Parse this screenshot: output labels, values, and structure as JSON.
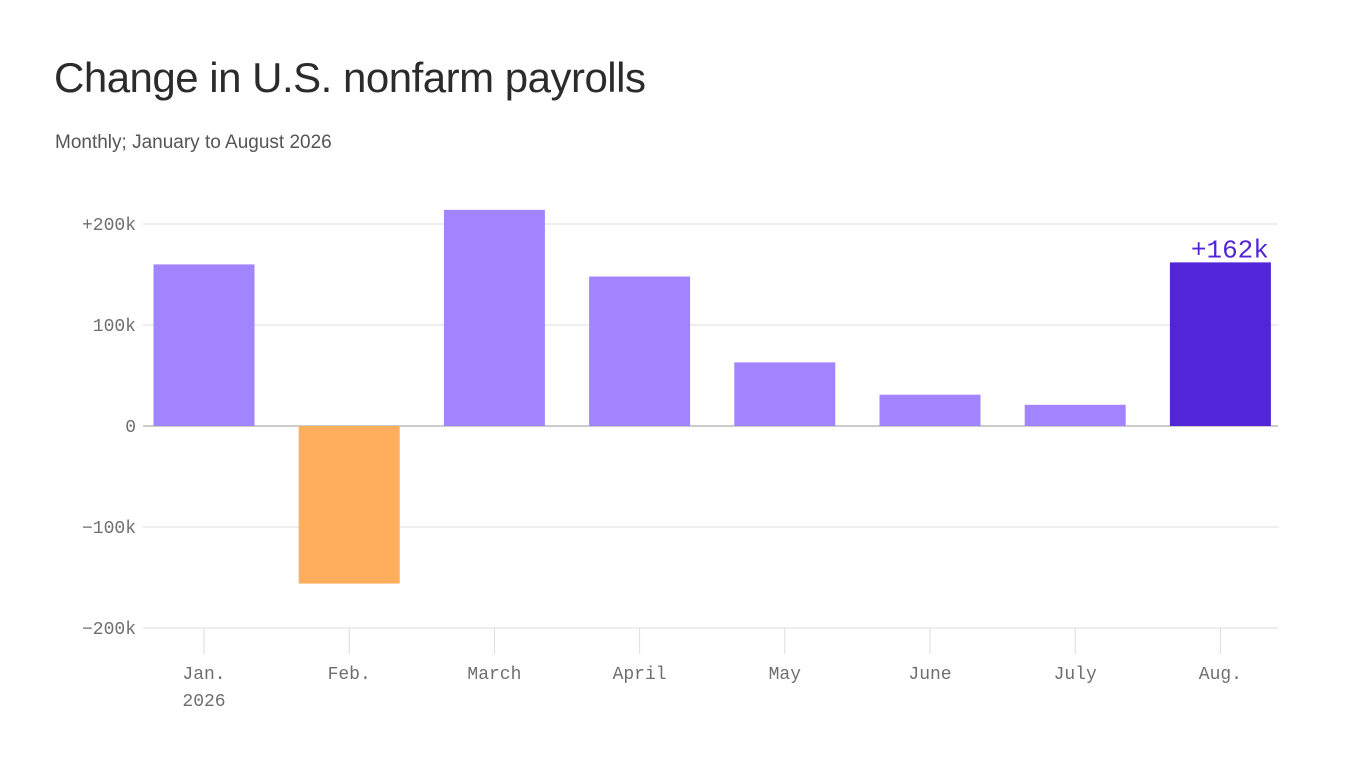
{
  "chart_data": {
    "type": "bar",
    "title": "Change in U.S. nonfarm payrolls",
    "subtitle": "Monthly; January to August 2026",
    "categories": [
      "Jan.",
      "Feb.",
      "March",
      "April",
      "May",
      "June",
      "July",
      "Aug."
    ],
    "category_sublabels": [
      "2026",
      "",
      "",
      "",
      "",
      "",
      "",
      ""
    ],
    "values": [
      160,
      -156,
      214,
      148,
      63,
      31,
      21,
      162
    ],
    "units": "thousands",
    "ylim": [
      -200,
      200
    ],
    "yticks": [
      {
        "value": 200,
        "label": "+200k"
      },
      {
        "value": 100,
        "label": "100k"
      },
      {
        "value": 0,
        "label": "0"
      },
      {
        "value": -100,
        "label": "−100k"
      },
      {
        "value": -200,
        "label": "−200k"
      }
    ],
    "grid": true,
    "highlight": {
      "index": 7,
      "label": "+162k"
    },
    "colors": {
      "positive": "#a284ff",
      "negative": "#ffae5e",
      "highlight": "#5325d8",
      "grid": "#dddddd",
      "zero_line": "#bbbbbb",
      "tick": "#6f6f6f"
    }
  }
}
